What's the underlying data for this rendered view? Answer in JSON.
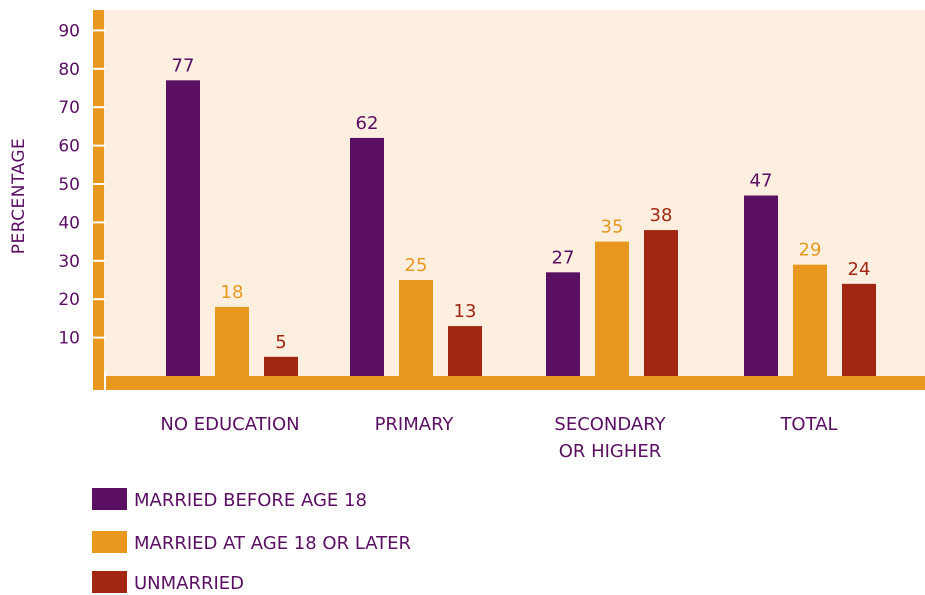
{
  "chart_data": {
    "type": "bar",
    "ylabel": "PERCENTAGE",
    "xlabel": "",
    "ylim": [
      0,
      95
    ],
    "yticks": [
      "10",
      "20",
      "30",
      "40",
      "50",
      "60",
      "70",
      "80",
      "90"
    ],
    "categories": [
      [
        "NO EDUCATION"
      ],
      [
        "PRIMARY"
      ],
      [
        "SECONDARY",
        "OR HIGHER"
      ],
      [
        "TOTAL"
      ]
    ],
    "series": [
      {
        "name": "MARRIED BEFORE AGE 18",
        "color": "#5a0f63",
        "values": [
          77,
          62,
          27,
          47
        ]
      },
      {
        "name": "MARRIED AT AGE 18 OR LATER",
        "color": "#e8981f",
        "values": [
          18,
          25,
          35,
          29
        ]
      },
      {
        "name": "UNMARRIED",
        "color": "#a12713",
        "values": [
          5,
          13,
          38,
          24
        ]
      }
    ],
    "value_labels": [
      [
        "77",
        "62",
        "27",
        "47"
      ],
      [
        "18",
        "25",
        "35",
        "29"
      ],
      [
        "5",
        "13",
        "38",
        "24"
      ]
    ],
    "legend": {
      "position": "bottom-left"
    },
    "grid": false
  },
  "colors": {
    "plot_background": "#fcefe0",
    "axis": "#e8981f",
    "text": "#5a0f63"
  }
}
